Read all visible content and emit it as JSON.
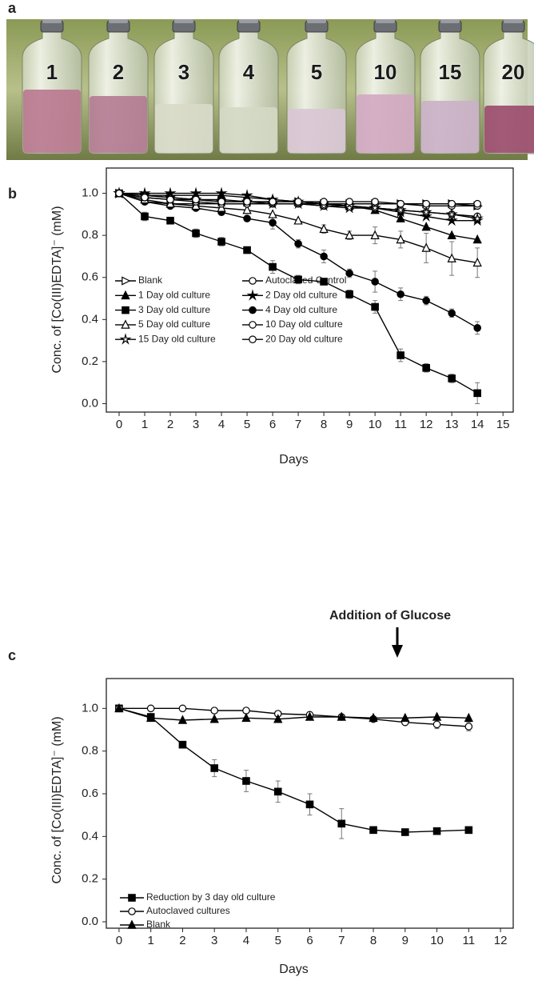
{
  "photo": {
    "panel_label": "a",
    "bottle_labels": [
      "1",
      "2",
      "3",
      "4",
      "5",
      "10",
      "15",
      "20"
    ]
  },
  "chart_data": [
    {
      "type": "line",
      "panel_label": "b",
      "x_label": "Days",
      "y_label": "Conc. of [Co(III)EDTA]⁻ (mM)",
      "x": [
        0,
        1,
        2,
        3,
        4,
        5,
        6,
        7,
        8,
        9,
        10,
        11,
        12,
        13,
        14
      ],
      "xlim": [
        -0.5,
        15.4
      ],
      "xticks": [
        0,
        1,
        2,
        3,
        4,
        5,
        6,
        7,
        8,
        9,
        10,
        11,
        12,
        13,
        14,
        15
      ],
      "ylim": [
        -0.04,
        1.12
      ],
      "yticks": [
        {
          "value": 0,
          "label": "0.0"
        },
        0.2,
        0.4,
        0.6,
        0.8,
        {
          "value": 1,
          "label": "1.0"
        }
      ],
      "legend": "lower left",
      "series": [
        {
          "name": "Blank",
          "color": "#000000",
          "marker": "triangle-right-open",
          "values": [
            1.0,
            0.99,
            0.98,
            0.97,
            0.97,
            0.96,
            0.96,
            0.96,
            0.95,
            0.95,
            0.95,
            0.95,
            0.95,
            0.95,
            0.94
          ]
        },
        {
          "name": "Autoclaved Control",
          "color": "#000000",
          "marker": "circle-open",
          "values": [
            1.0,
            0.96,
            0.95,
            0.95,
            0.95,
            0.95,
            0.95,
            0.95,
            0.95,
            0.95,
            0.95,
            0.95,
            0.94,
            0.94,
            0.94
          ]
        },
        {
          "name": "1 Day old culture",
          "color": "#000000",
          "marker": "triangle",
          "values": [
            1.0,
            0.99,
            0.99,
            0.99,
            0.99,
            0.98,
            0.97,
            0.96,
            0.95,
            0.94,
            0.92,
            0.88,
            0.84,
            0.8,
            0.78
          ]
        },
        {
          "name": "2 Day old culture",
          "color": "#000000",
          "marker": "star",
          "values": [
            1.0,
            1.0,
            1.0,
            1.0,
            1.0,
            0.99,
            0.97,
            0.96,
            0.95,
            0.94,
            0.93,
            0.91,
            0.89,
            0.87,
            0.87
          ]
        },
        {
          "name": "3 Day old culture",
          "color": "#000000",
          "marker": "square",
          "values": [
            1.0,
            0.89,
            0.87,
            0.81,
            0.77,
            0.73,
            0.65,
            0.59,
            0.58,
            0.52,
            0.46,
            0.23,
            0.17,
            0.12,
            0.05
          ],
          "errors": [
            0,
            0.02,
            0,
            0.02,
            0.02,
            0,
            0.03,
            0.02,
            0.01,
            0.02,
            0.03,
            0.03,
            0.02,
            0.02,
            0.05
          ]
        },
        {
          "name": "4 Day old culture",
          "color": "#000000",
          "marker": "circle",
          "values": [
            1.0,
            0.96,
            0.94,
            0.93,
            0.91,
            0.88,
            0.86,
            0.76,
            0.7,
            0.62,
            0.58,
            0.52,
            0.49,
            0.43,
            0.36
          ],
          "errors": [
            0,
            0,
            0,
            0,
            0,
            0,
            0.03,
            0.02,
            0.03,
            0.02,
            0.05,
            0.03,
            0.02,
            0.02,
            0.03
          ]
        },
        {
          "name": "5 Day old culture",
          "color": "#000000",
          "marker": "triangle-open",
          "values": [
            1.0,
            0.97,
            0.95,
            0.94,
            0.93,
            0.92,
            0.9,
            0.87,
            0.83,
            0.8,
            0.8,
            0.78,
            0.74,
            0.69,
            0.67
          ],
          "errors": [
            0,
            0,
            0,
            0,
            0,
            0,
            0,
            0,
            0.02,
            0.02,
            0.04,
            0.04,
            0.07,
            0.08,
            0.07
          ]
        },
        {
          "name": "10 Day old culture",
          "color": "#000000",
          "marker": "circle-open",
          "values": [
            1.0,
            0.98,
            0.97,
            0.96,
            0.95,
            0.95,
            0.95,
            0.95,
            0.94,
            0.94,
            0.93,
            0.92,
            0.91,
            0.9,
            0.89
          ]
        },
        {
          "name": "15 Day old culture",
          "color": "#000000",
          "marker": "star-open",
          "values": [
            1.0,
            0.99,
            0.98,
            0.97,
            0.96,
            0.96,
            0.95,
            0.95,
            0.94,
            0.93,
            0.93,
            0.92,
            0.91,
            0.9,
            0.88
          ]
        },
        {
          "name": "20 Day old culture",
          "color": "#000000",
          "marker": "circle-open",
          "values": [
            1.0,
            0.98,
            0.97,
            0.97,
            0.96,
            0.96,
            0.96,
            0.96,
            0.96,
            0.96,
            0.96,
            0.95,
            0.95,
            0.95,
            0.95
          ]
        }
      ]
    },
    {
      "type": "line",
      "panel_label": "c",
      "x_label": "Days",
      "y_label": "Conc. of [Co(III)EDTA]⁻ (mM)",
      "annotation": "Addition of Glucose",
      "x": [
        0,
        1,
        2,
        3,
        4,
        5,
        6,
        7,
        8,
        9,
        10,
        11
      ],
      "xlim": [
        -0.4,
        12.4
      ],
      "xticks": [
        0,
        1,
        2,
        3,
        4,
        5,
        6,
        7,
        8,
        9,
        10,
        11,
        12
      ],
      "ylim": [
        -0.03,
        1.14
      ],
      "yticks": [
        {
          "value": 0,
          "label": "0.0"
        },
        0.2,
        0.4,
        0.6,
        0.8,
        {
          "value": 1,
          "label": "1.0"
        }
      ],
      "legend": "lower left",
      "series": [
        {
          "name": "Reduction by 3 day old culture",
          "color": "#000000",
          "marker": "square",
          "values": [
            1.0,
            0.96,
            0.83,
            0.72,
            0.66,
            0.61,
            0.55,
            0.46,
            0.43,
            0.42,
            0.425,
            0.43
          ],
          "errors": [
            0,
            0,
            0.01,
            0.04,
            0.05,
            0.05,
            0.05,
            0.07,
            0,
            0,
            0,
            0
          ]
        },
        {
          "name": "Autoclaved cultures",
          "color": "#000000",
          "marker": "circle-open",
          "values": [
            1.0,
            1.0,
            1.0,
            0.99,
            0.99,
            0.975,
            0.97,
            0.96,
            0.95,
            0.935,
            0.925,
            0.915
          ],
          "errors": [
            0,
            0,
            0,
            0,
            0,
            0,
            0.01,
            0,
            0,
            0,
            0.02,
            0.02
          ]
        },
        {
          "name": "Blank",
          "color": "#000000",
          "marker": "triangle",
          "values": [
            1.0,
            0.955,
            0.945,
            0.95,
            0.955,
            0.95,
            0.96,
            0.96,
            0.955,
            0.955,
            0.96,
            0.955
          ]
        }
      ]
    }
  ]
}
